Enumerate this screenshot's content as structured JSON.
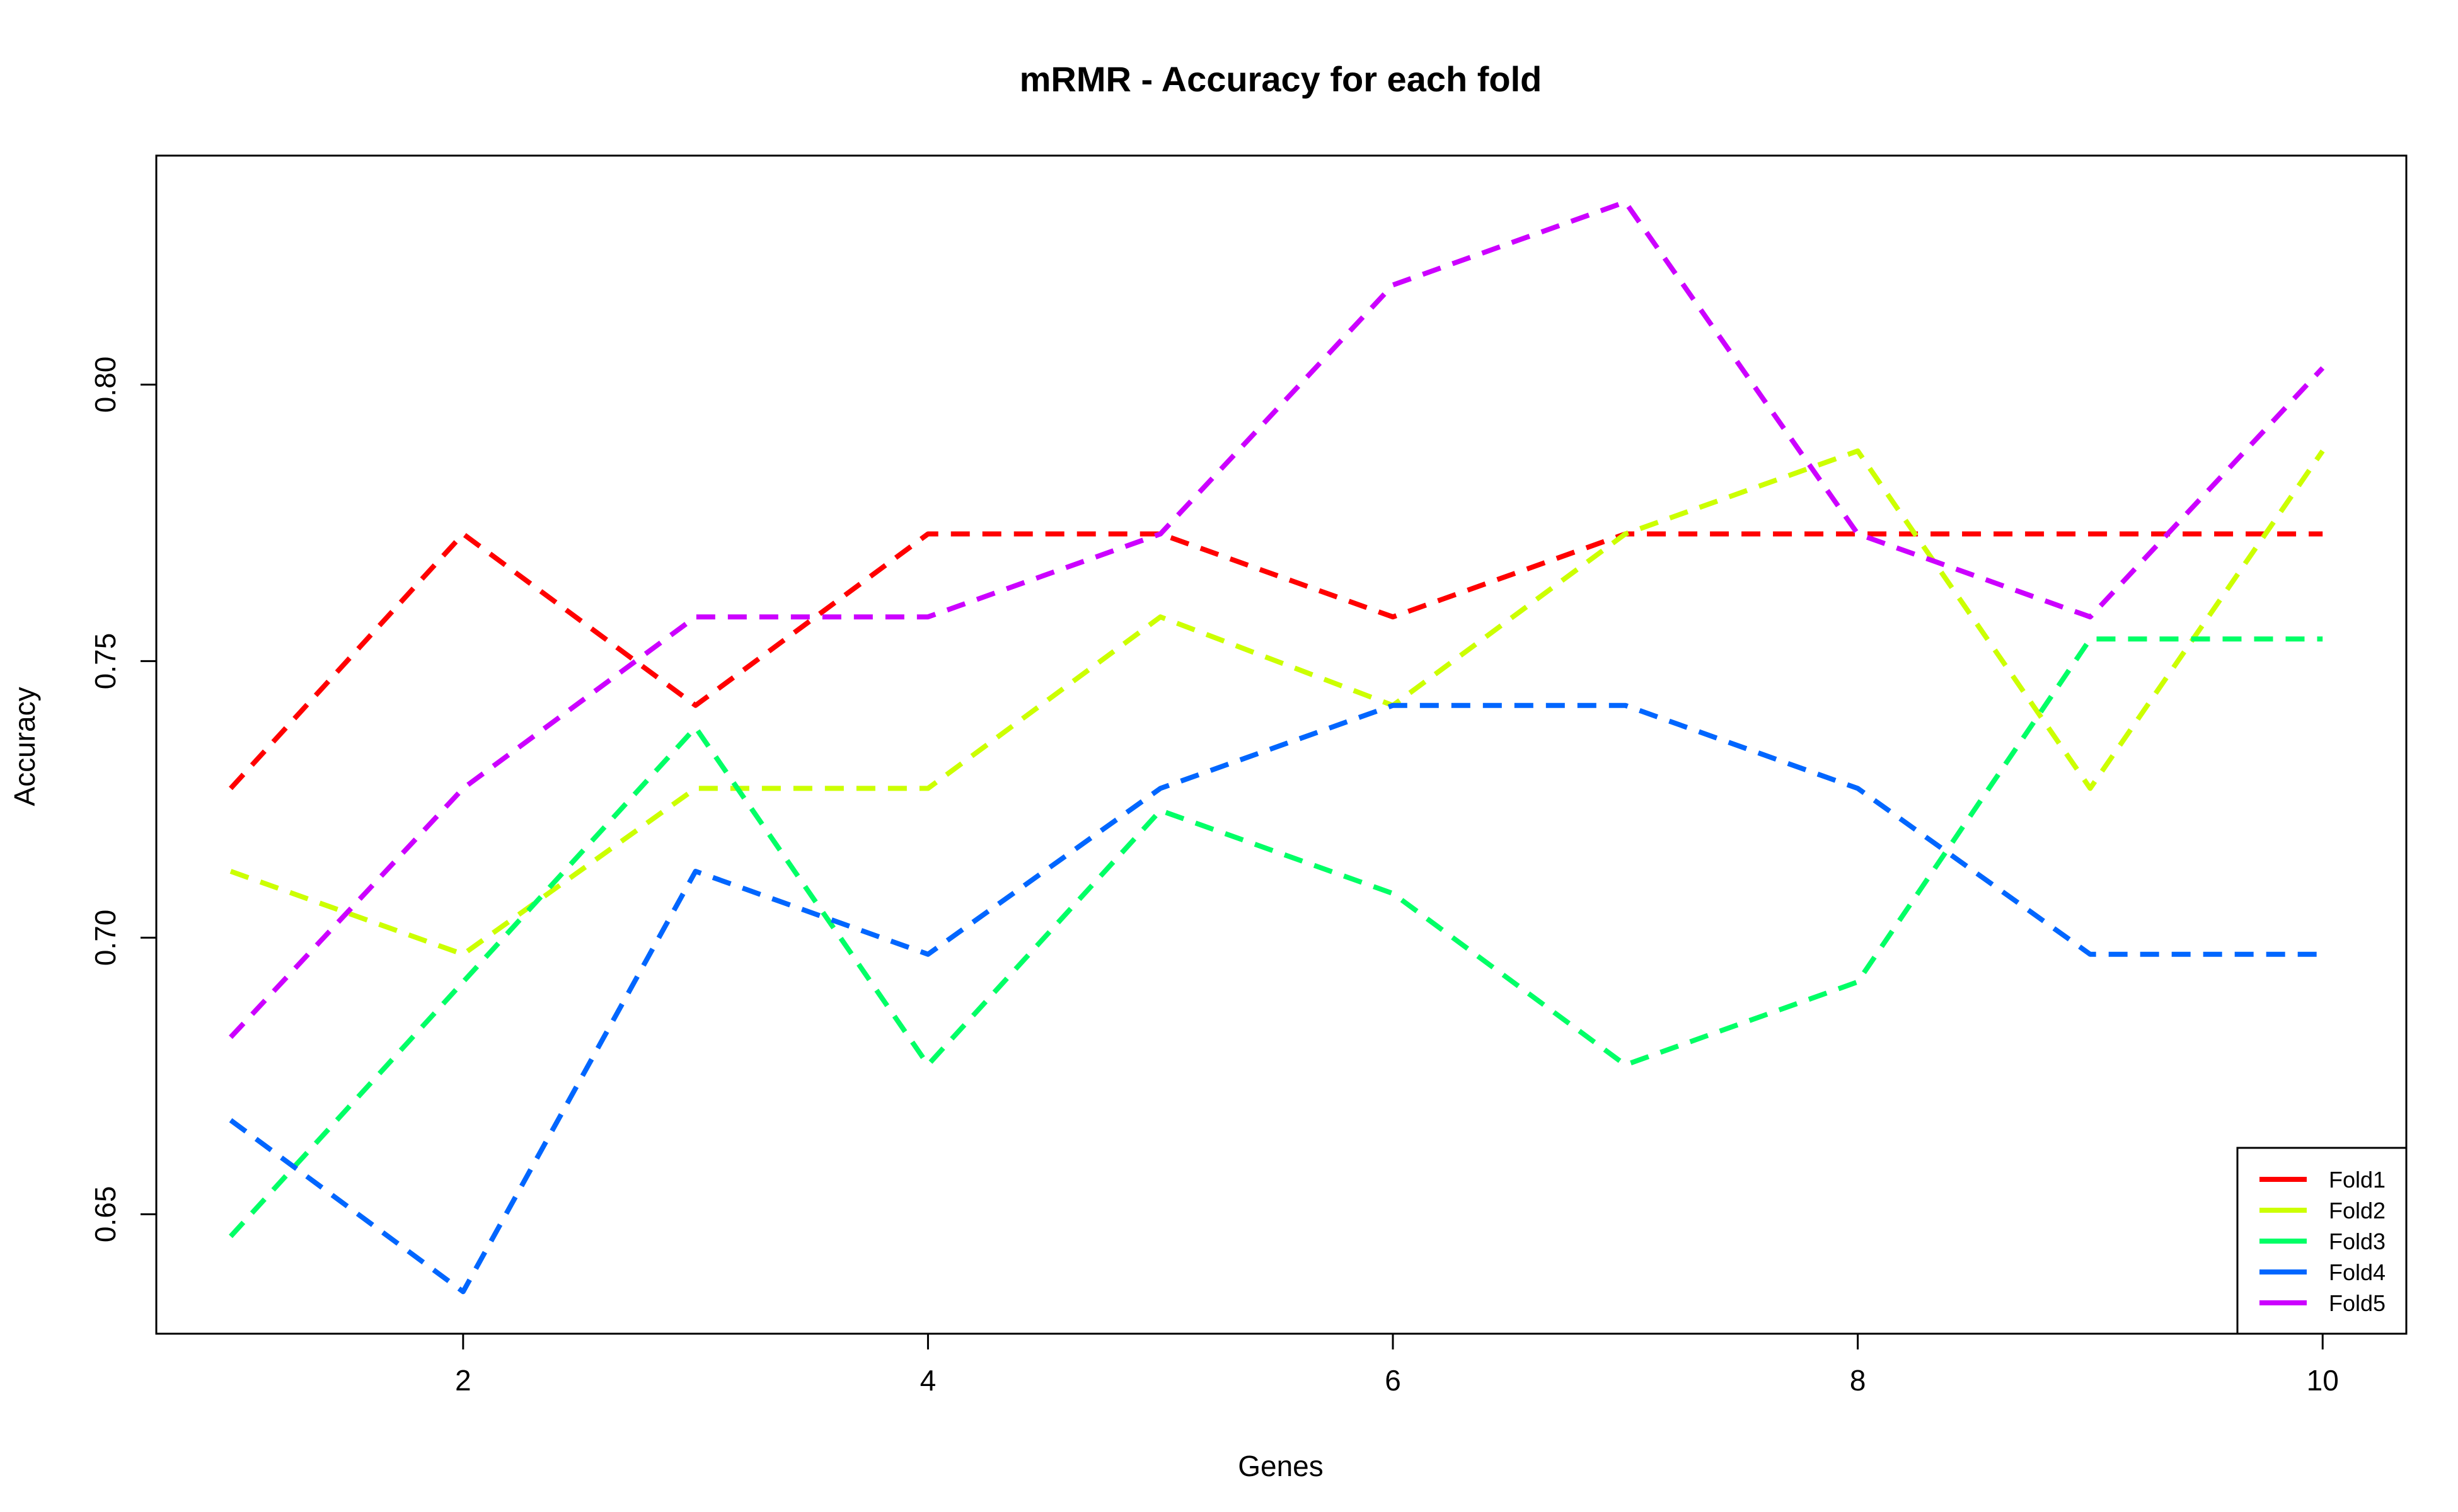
{
  "chart_data": {
    "type": "line",
    "title": "mRMR - Accuracy for each fold",
    "xlabel": "Genes",
    "ylabel": "Accuracy",
    "x": [
      1,
      2,
      3,
      4,
      5,
      6,
      7,
      8,
      9,
      10
    ],
    "xlim": [
      0.68,
      10.36
    ],
    "ylim": [
      0.6284,
      0.8414
    ],
    "xticks": [
      2,
      4,
      6,
      8,
      10
    ],
    "xtick_labels": [
      "2",
      "4",
      "6",
      "8",
      "10"
    ],
    "yticks": [
      0.65,
      0.7,
      0.75,
      0.8
    ],
    "ytick_labels": [
      "0.65",
      "0.70",
      "0.75",
      "0.80"
    ],
    "line_style": "dashed",
    "grid": false,
    "legend_position": "bottom-right",
    "series": [
      {
        "name": "Fold1",
        "color": "#FF0000",
        "values": [
          0.727,
          0.773,
          0.742,
          0.773,
          0.773,
          0.758,
          0.773,
          0.773,
          0.773,
          0.773
        ]
      },
      {
        "name": "Fold2",
        "color": "#CCFF00",
        "values": [
          0.712,
          0.697,
          0.727,
          0.727,
          0.758,
          0.742,
          0.773,
          0.788,
          0.727,
          0.788
        ]
      },
      {
        "name": "Fold3",
        "color": "#00FF66",
        "values": [
          0.646,
          0.692,
          0.738,
          0.677,
          0.723,
          0.708,
          0.677,
          0.692,
          0.754,
          0.754
        ]
      },
      {
        "name": "Fold4",
        "color": "#0066FF",
        "values": [
          0.667,
          0.636,
          0.712,
          0.697,
          0.727,
          0.742,
          0.742,
          0.727,
          0.697,
          0.697
        ]
      },
      {
        "name": "Fold5",
        "color": "#CC00FF",
        "values": [
          0.682,
          0.727,
          0.758,
          0.758,
          0.773,
          0.818,
          0.833,
          0.773,
          0.758,
          0.803
        ]
      }
    ]
  }
}
